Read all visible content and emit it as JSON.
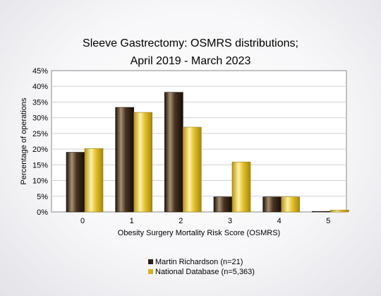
{
  "chart_data": {
    "type": "bar",
    "title_lines": [
      "Sleeve Gastrectomy: OSMRS distributions;",
      "April 2019 - March 2023"
    ],
    "xlabel": "Obesity Surgery Mortality Risk Score (OSMRS)",
    "ylabel": "Percentage of operations",
    "categories": [
      "0",
      "1",
      "2",
      "3",
      "4",
      "5"
    ],
    "ylim": [
      0,
      45
    ],
    "yticks": [
      "0%",
      "5%",
      "10%",
      "15%",
      "20%",
      "25%",
      "30%",
      "35%",
      "40%",
      "45%"
    ],
    "grid": true,
    "legend_position": "bottom-center",
    "series": [
      {
        "name": "Martin Richardson (n=21)",
        "color": "#2e1e12",
        "values": [
          19.0,
          33.3,
          38.1,
          4.8,
          4.8,
          0.1
        ]
      },
      {
        "name": "National Database (n=5,363)",
        "color": "#d6b31a",
        "values": [
          20.2,
          31.7,
          27.0,
          15.9,
          4.8,
          0.6
        ]
      }
    ]
  }
}
